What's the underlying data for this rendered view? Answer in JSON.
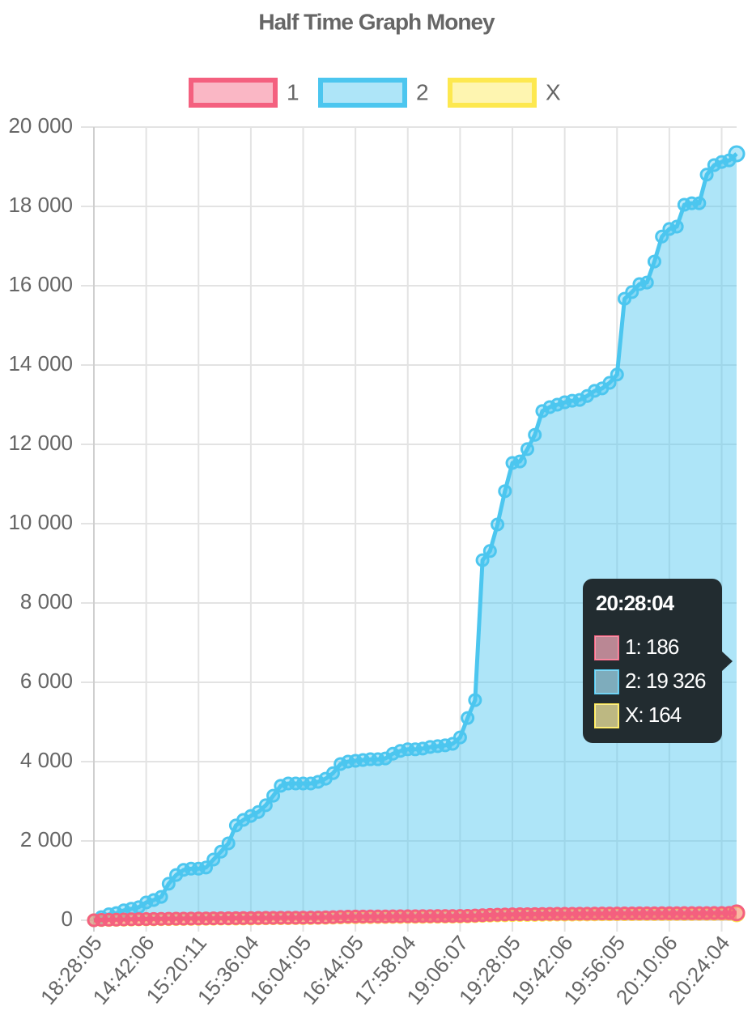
{
  "chart_data": {
    "type": "line",
    "title": "Half Time Graph Money",
    "categories": [
      "18:28:05",
      null,
      null,
      null,
      null,
      null,
      null,
      "14:42:06",
      null,
      null,
      null,
      null,
      null,
      null,
      "15:20:11",
      null,
      null,
      null,
      null,
      null,
      null,
      "15:36:04",
      null,
      null,
      null,
      null,
      null,
      null,
      "16:04:05",
      null,
      null,
      null,
      null,
      null,
      null,
      "16:44:05",
      null,
      null,
      null,
      null,
      null,
      null,
      "17:58:04",
      null,
      null,
      null,
      null,
      null,
      null,
      "19:06:07",
      null,
      null,
      null,
      null,
      null,
      null,
      "19:28:05",
      null,
      null,
      null,
      null,
      null,
      null,
      "19:42:06",
      null,
      null,
      null,
      null,
      null,
      null,
      "19:56:05",
      null,
      null,
      null,
      null,
      null,
      null,
      "20:10:06",
      null,
      null,
      null,
      null,
      null,
      null,
      "20:24:04",
      null,
      null
    ],
    "series": [
      {
        "name": "1",
        "color": "#f4607f",
        "values": [
          0,
          10,
          12,
          15,
          20,
          25,
          28,
          30,
          32,
          35,
          38,
          40,
          42,
          44,
          45,
          46,
          48,
          50,
          52,
          54,
          55,
          56,
          58,
          60,
          62,
          63,
          64,
          65,
          66,
          68,
          70,
          75,
          80,
          88,
          92,
          94,
          95,
          96,
          97,
          98,
          100,
          101,
          102,
          103,
          104,
          105,
          106,
          107,
          108,
          110,
          112,
          120,
          128,
          135,
          140,
          145,
          150,
          152,
          154,
          156,
          158,
          160,
          162,
          163,
          164,
          165,
          166,
          168,
          170,
          171,
          172,
          173,
          174,
          175,
          176,
          177,
          178,
          178,
          179,
          180,
          180,
          181,
          182,
          183,
          184,
          185,
          186
        ]
      },
      {
        "name": "2",
        "color": "#4cc6ef",
        "values": [
          0,
          80,
          150,
          180,
          250,
          290,
          330,
          450,
          510,
          590,
          920,
          1140,
          1270,
          1300,
          1300,
          1330,
          1530,
          1730,
          1940,
          2390,
          2530,
          2630,
          2730,
          2900,
          3140,
          3390,
          3450,
          3450,
          3450,
          3450,
          3490,
          3570,
          3710,
          3940,
          4000,
          4020,
          4040,
          4060,
          4060,
          4080,
          4200,
          4270,
          4310,
          4310,
          4330,
          4370,
          4390,
          4410,
          4450,
          4610,
          5100,
          5550,
          9080,
          9310,
          9980,
          10820,
          11530,
          11570,
          11880,
          12240,
          12840,
          12940,
          13000,
          13060,
          13100,
          13120,
          13220,
          13350,
          13410,
          13550,
          13760,
          15670,
          15840,
          16040,
          16080,
          16610,
          17240,
          17430,
          17490,
          18040,
          18080,
          18080,
          18800,
          19040,
          19120,
          19160,
          19326
        ]
      },
      {
        "name": "X",
        "color": "#fde84f",
        "values": [
          0,
          5,
          8,
          10,
          14,
          18,
          20,
          22,
          24,
          26,
          28,
          30,
          32,
          34,
          35,
          36,
          38,
          40,
          41,
          42,
          43,
          44,
          46,
          48,
          50,
          51,
          52,
          53,
          54,
          56,
          58,
          62,
          66,
          72,
          76,
          78,
          79,
          80,
          81,
          82,
          84,
          85,
          86,
          87,
          88,
          89,
          90,
          91,
          92,
          94,
          96,
          104,
          112,
          118,
          122,
          126,
          130,
          132,
          134,
          136,
          138,
          140,
          142,
          143,
          144,
          145,
          146,
          148,
          150,
          151,
          152,
          153,
          154,
          155,
          156,
          156,
          157,
          157,
          158,
          158,
          159,
          160,
          161,
          161,
          162,
          163,
          164
        ]
      }
    ],
    "ylim": [
      0,
      20000
    ],
    "yticks": [
      {
        "value": 0,
        "label": "0"
      },
      {
        "value": 2000,
        "label": "2 000"
      },
      {
        "value": 4000,
        "label": "4 000"
      },
      {
        "value": 6000,
        "label": "6 000"
      },
      {
        "value": 8000,
        "label": "8 000"
      },
      {
        "value": 10000,
        "label": "10 000"
      },
      {
        "value": 12000,
        "label": "12 000"
      },
      {
        "value": 14000,
        "label": "14 000"
      },
      {
        "value": 16000,
        "label": "16 000"
      },
      {
        "value": 18000,
        "label": "18 000"
      },
      {
        "value": 20000,
        "label": "20 000"
      }
    ],
    "grid": true,
    "fill": true,
    "legend": "top",
    "tooltip": {
      "title": "20:28:04",
      "lines": [
        "1: 186",
        "2: 19 326",
        "X: 164"
      ]
    }
  }
}
